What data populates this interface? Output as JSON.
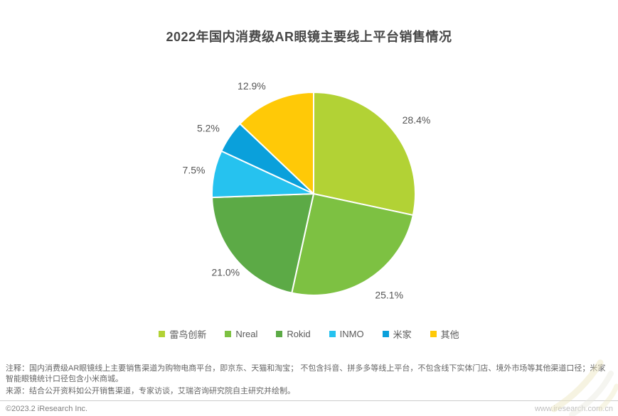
{
  "title": "2022年国内消费级AR眼镜主要线上平台销售情况",
  "chart_data": {
    "type": "pie",
    "title": "2022年国内消费级AR眼镜主要线上平台销售情况",
    "categories": [
      "雷鸟创新",
      "Nreal",
      "Rokid",
      "INMO",
      "米家",
      "其他"
    ],
    "values": [
      28.4,
      25.1,
      21.0,
      7.5,
      5.2,
      12.9
    ],
    "labels": [
      "28.4%",
      "25.1%",
      "21.0%",
      "7.5%",
      "5.2%",
      "12.9%"
    ],
    "colors": [
      "#b2d235",
      "#7dc142",
      "#5caa46",
      "#26c2ef",
      "#0aa0db",
      "#ffc907"
    ],
    "start_angle_deg": 0,
    "direction": "clockwise",
    "slice_gap_color": "#ffffff",
    "legend_position": "bottom"
  },
  "footer": {
    "note": "注释：国内消费级AR眼镜线上主要销售渠道为购物电商平台，即京东、天猫和淘宝； 不包含抖音、拼多多等线上平台，不包含线下实体门店、境外市场等其他渠道口径；米家智能眼镜统计口径包含小米商城。",
    "source": "来源：结合公开资料如公开销售渠道，专家访谈，艾瑞咨询研究院自主研究并绘制。",
    "copyright": "©2023.2 iResearch Inc.",
    "website": "www.iresearch.com.cn"
  }
}
